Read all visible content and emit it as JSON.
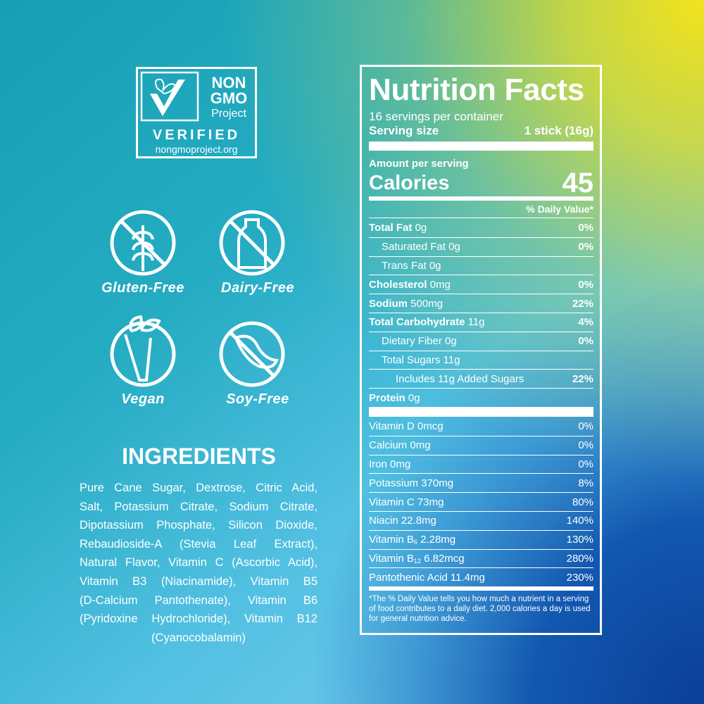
{
  "badge": {
    "non": "NON",
    "gmo": "GMO",
    "project": "Project",
    "verified": "VERIFIED",
    "url": "nongmoproject.org"
  },
  "claims": [
    "Gluten-Free",
    "Dairy-Free",
    "Vegan",
    "Soy-Free"
  ],
  "ingredients": {
    "title": "INGREDIENTS",
    "lines": [
      "Pure Cane Sugar, Dextrose, Citric Acid,",
      "Salt, Potassium Citrate, Sodium Citrate,",
      "Dipotassium Phosphate, Silicon Dioxide,",
      "Rebaudioside-A (Stevia Leaf Extract),",
      "Natural Flavor, Vitamin C (Ascorbic Acid),",
      "Vitamin B3 (Niacinamide), Vitamin B5",
      "(D-Calcium Pantothenate), Vitamin B6",
      "(Pyridoxine Hydrochloride), Vitamin B12",
      "(Cyanocobalamin)"
    ]
  },
  "nutrition": {
    "title": "Nutrition Facts",
    "servings": "16 servings per container",
    "serving_size_label": "Serving size",
    "serving_size_value": "1 stick (16g)",
    "amount_per_serving": "Amount per serving",
    "calories_label": "Calories",
    "calories_value": "45",
    "dv_header": "% Daily Value*",
    "rows": [
      {
        "name": "Total Fat",
        "amount": "0g",
        "dv": "0%"
      },
      {
        "name": "Saturated Fat",
        "amount": "0g",
        "dv": "0%"
      },
      {
        "name": "Trans Fat",
        "amount": "0g"
      },
      {
        "name": "Cholesterol",
        "amount": "0mg",
        "dv": "0%"
      },
      {
        "name": "Sodium",
        "amount": "500mg",
        "dv": "22%"
      },
      {
        "name": "Total Carbohydrate",
        "amount": "11g",
        "dv": "4%"
      },
      {
        "name": "Dietary Fiber",
        "amount": "0g",
        "dv": "0%"
      },
      {
        "name": "Total Sugars",
        "amount": "11g"
      },
      {
        "name": "Includes 11g Added Sugars",
        "dv": "22%"
      },
      {
        "name": "Protein",
        "amount": "0g"
      }
    ],
    "vitamins": [
      {
        "name": "Vitamin D",
        "amount": "0mcg",
        "dv": "0%"
      },
      {
        "name": "Calcium",
        "amount": "0mg",
        "dv": "0%"
      },
      {
        "name": "Iron",
        "amount": "0mg",
        "dv": "0%"
      },
      {
        "name": "Potassium",
        "amount": "370mg",
        "dv": "8%"
      },
      {
        "name": "Vitamin C",
        "amount": "73mg",
        "dv": "80%"
      },
      {
        "name": "Niacin",
        "amount": "22.8mg",
        "dv": "140%"
      },
      {
        "name": "Vitamin B",
        "sub": "6",
        "amount": "2.28mg",
        "dv": "130%"
      },
      {
        "name": "Vitamin B",
        "sub": "12",
        "amount": "6.82mcg",
        "dv": "280%"
      },
      {
        "name": "Pantothenic Acid",
        "amount": "11.4mg",
        "dv": "230%"
      }
    ],
    "footnote": "*The % Daily Value tells you how much a nutrient in a serving of food contributes to a daily diet. 2,000 calories a day is used for general nutrition advice."
  }
}
